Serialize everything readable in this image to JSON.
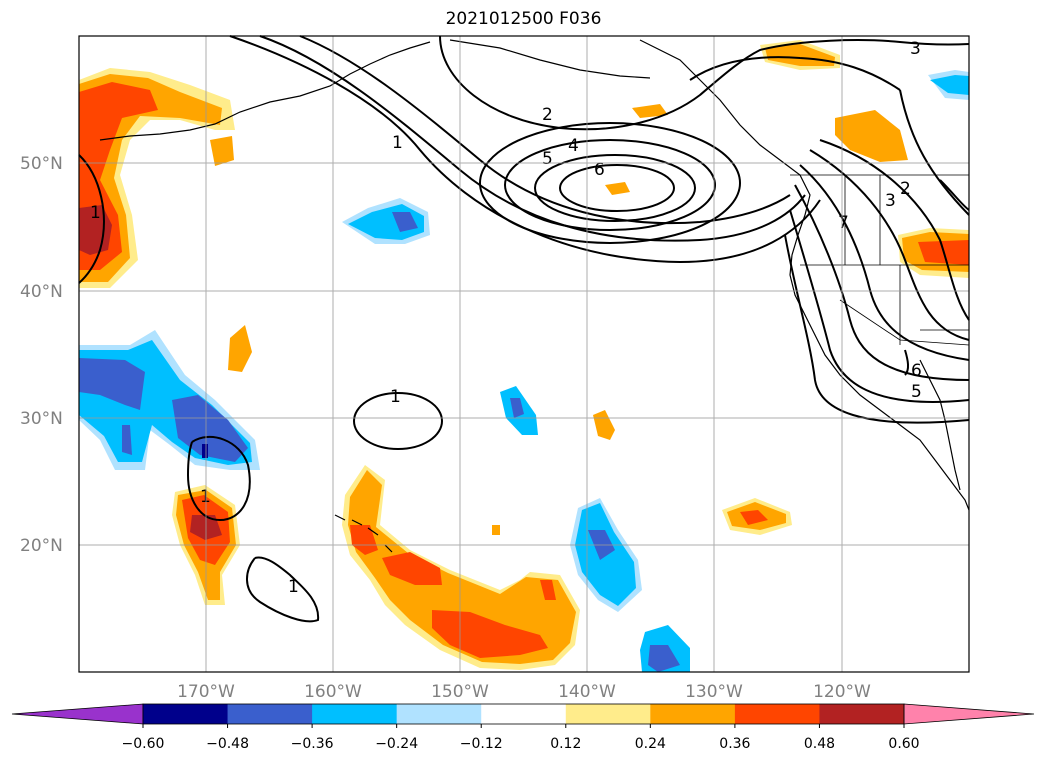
{
  "title": "2021012500 F036",
  "map": {
    "lat_labels": [
      "50°N",
      "40°N",
      "30°N",
      "20°N"
    ],
    "lon_labels": [
      "170°W",
      "160°W",
      "150°W",
      "140°W",
      "130°W",
      "120°W"
    ],
    "contour_labels": [
      "3",
      "2",
      "1",
      "4",
      "5",
      "6",
      "1",
      "2",
      "3",
      "7",
      "6",
      "5",
      "1",
      "1",
      "1"
    ],
    "colors": {
      "neg_060": "#9932cc",
      "neg_048": "#00008b",
      "neg_036": "#3a5fcd",
      "neg_024": "#00bfff",
      "neg_012": "#b0e2ff",
      "pos_012": "#ffec8b",
      "pos_024": "#ffa500",
      "pos_036": "#ff4500",
      "pos_048": "#b22222",
      "pos_060": "#ff82ab"
    }
  },
  "colorbar": {
    "ticks": [
      "−0.60",
      "−0.48",
      "−0.36",
      "−0.24",
      "−0.12",
      "0.12",
      "0.24",
      "0.36",
      "0.48",
      "0.60"
    ],
    "colors": [
      "#9932cc",
      "#00008b",
      "#3a5fcd",
      "#00bfff",
      "#b0e2ff",
      "#ffffff",
      "#ffec8b",
      "#ffa500",
      "#ff4500",
      "#b22222",
      "#ff82ab"
    ]
  }
}
